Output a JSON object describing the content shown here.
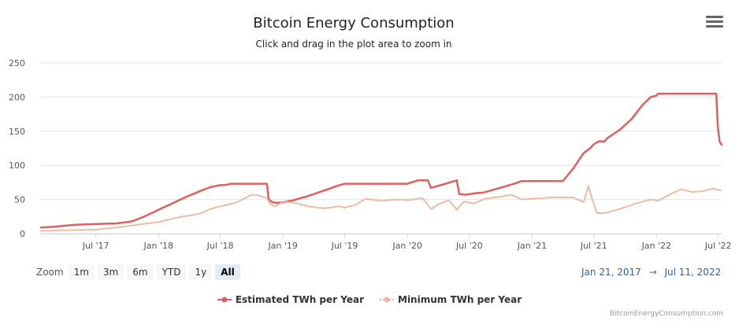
{
  "chart_data": {
    "type": "line",
    "title": "Bitcoin Energy Consumption",
    "subtitle": "Click and drag in the plot area to zoom in",
    "ylim": [
      0,
      250
    ],
    "yticks": [
      0,
      50,
      100,
      150,
      200,
      250
    ],
    "xlim": [
      "2017-01-21",
      "2022-07-11"
    ],
    "xticks": [
      {
        "date": "2017-07-01",
        "label": "Jul '17"
      },
      {
        "date": "2018-01-01",
        "label": "Jan '18"
      },
      {
        "date": "2018-07-01",
        "label": "Jul '18"
      },
      {
        "date": "2019-01-01",
        "label": "Jan '19"
      },
      {
        "date": "2019-07-01",
        "label": "Jul '19"
      },
      {
        "date": "2020-01-01",
        "label": "Jan '20"
      },
      {
        "date": "2020-07-01",
        "label": "Jul '20"
      },
      {
        "date": "2021-01-01",
        "label": "Jan '21"
      },
      {
        "date": "2021-07-01",
        "label": "Jul '21"
      },
      {
        "date": "2022-01-01",
        "label": "Jan '22"
      },
      {
        "date": "2022-07-01",
        "label": "Jul '22"
      }
    ],
    "grid": true,
    "legend_position": "bottom-center",
    "series": [
      {
        "name": "Estimated TWh per Year",
        "color": "#e05f5f",
        "style": "solid",
        "points": [
          [
            "2017-01-21",
            9
          ],
          [
            "2017-03-01",
            10
          ],
          [
            "2017-05-01",
            13
          ],
          [
            "2017-07-01",
            14
          ],
          [
            "2017-09-01",
            15
          ],
          [
            "2017-10-15",
            18
          ],
          [
            "2017-11-15",
            24
          ],
          [
            "2017-12-20",
            32
          ],
          [
            "2018-01-05",
            36
          ],
          [
            "2018-02-01",
            42
          ],
          [
            "2018-03-15",
            52
          ],
          [
            "2018-05-01",
            62
          ],
          [
            "2018-06-01",
            68
          ],
          [
            "2018-07-01",
            71
          ],
          [
            "2018-07-15",
            71
          ],
          [
            "2018-08-01",
            73
          ],
          [
            "2018-11-15",
            73
          ],
          [
            "2018-11-20",
            50
          ],
          [
            "2018-12-01",
            46
          ],
          [
            "2018-12-15",
            45
          ],
          [
            "2019-01-01",
            46
          ],
          [
            "2019-02-01",
            49
          ],
          [
            "2019-03-15",
            55
          ],
          [
            "2019-05-01",
            63
          ],
          [
            "2019-06-15",
            71
          ],
          [
            "2019-07-01",
            73
          ],
          [
            "2019-12-01",
            73
          ],
          [
            "2020-01-01",
            73
          ],
          [
            "2020-02-01",
            78
          ],
          [
            "2020-03-01",
            78
          ],
          [
            "2020-03-10",
            67
          ],
          [
            "2020-04-15",
            72
          ],
          [
            "2020-05-25",
            78
          ],
          [
            "2020-06-01",
            58
          ],
          [
            "2020-06-20",
            57
          ],
          [
            "2020-07-15",
            59
          ],
          [
            "2020-08-10",
            60
          ],
          [
            "2020-09-15",
            65
          ],
          [
            "2020-10-20",
            70
          ],
          [
            "2020-11-15",
            74
          ],
          [
            "2020-12-01",
            77
          ],
          [
            "2021-04-01",
            77
          ],
          [
            "2021-05-01",
            95
          ],
          [
            "2021-06-01",
            118
          ],
          [
            "2021-06-20",
            125
          ],
          [
            "2021-07-01",
            131
          ],
          [
            "2021-07-15",
            135
          ],
          [
            "2021-08-01",
            135
          ],
          [
            "2021-08-10",
            140
          ],
          [
            "2021-09-15",
            152
          ],
          [
            "2021-10-20",
            168
          ],
          [
            "2021-11-20",
            188
          ],
          [
            "2021-12-15",
            200
          ],
          [
            "2021-12-31",
            202
          ],
          [
            "2022-01-05",
            205
          ],
          [
            "2022-06-25",
            205
          ],
          [
            "2022-06-30",
            155
          ],
          [
            "2022-07-05",
            135
          ],
          [
            "2022-07-11",
            130
          ]
        ]
      },
      {
        "name": "Minimum TWh per Year",
        "color": "#f0b49a",
        "style": "dotted",
        "points": [
          [
            "2017-01-21",
            4
          ],
          [
            "2017-04-01",
            5
          ],
          [
            "2017-07-01",
            6
          ],
          [
            "2017-09-01",
            9
          ],
          [
            "2017-11-01",
            13
          ],
          [
            "2018-01-01",
            17
          ],
          [
            "2018-03-01",
            24
          ],
          [
            "2018-05-01",
            29
          ],
          [
            "2018-06-01",
            36
          ],
          [
            "2018-07-01",
            40
          ],
          [
            "2018-08-15",
            45
          ],
          [
            "2018-10-01",
            57
          ],
          [
            "2018-10-20",
            56
          ],
          [
            "2018-11-15",
            52
          ],
          [
            "2018-11-25",
            43
          ],
          [
            "2018-12-10",
            40
          ],
          [
            "2019-01-01",
            47
          ],
          [
            "2019-02-15",
            44
          ],
          [
            "2019-03-15",
            40
          ],
          [
            "2019-05-01",
            37
          ],
          [
            "2019-06-15",
            40
          ],
          [
            "2019-07-01",
            38
          ],
          [
            "2019-08-01",
            42
          ],
          [
            "2019-09-01",
            51
          ],
          [
            "2019-10-15",
            48
          ],
          [
            "2019-12-01",
            50
          ],
          [
            "2020-01-01",
            49
          ],
          [
            "2020-02-15",
            52
          ],
          [
            "2020-03-10",
            36
          ],
          [
            "2020-04-01",
            43
          ],
          [
            "2020-05-01",
            49
          ],
          [
            "2020-05-25",
            35
          ],
          [
            "2020-06-15",
            47
          ],
          [
            "2020-07-15",
            44
          ],
          [
            "2020-08-15",
            51
          ],
          [
            "2020-10-01",
            54
          ],
          [
            "2020-11-01",
            57
          ],
          [
            "2020-12-01",
            50
          ],
          [
            "2021-03-01",
            53
          ],
          [
            "2021-05-01",
            53
          ],
          [
            "2021-06-01",
            46
          ],
          [
            "2021-06-15",
            70
          ],
          [
            "2021-06-25",
            52
          ],
          [
            "2021-07-10",
            30
          ],
          [
            "2021-08-01",
            30
          ],
          [
            "2021-09-15",
            36
          ],
          [
            "2021-11-01",
            44
          ],
          [
            "2021-12-15",
            50
          ],
          [
            "2022-01-05",
            48
          ],
          [
            "2022-02-15",
            59
          ],
          [
            "2022-03-15",
            65
          ],
          [
            "2022-04-15",
            61
          ],
          [
            "2022-05-15",
            62
          ],
          [
            "2022-06-15",
            66
          ],
          [
            "2022-07-11",
            63
          ]
        ]
      }
    ]
  },
  "menu": {
    "icon": "hamburger-menu-icon"
  },
  "range_selector": {
    "label": "Zoom",
    "buttons": [
      "1m",
      "3m",
      "6m",
      "YTD",
      "1y",
      "All"
    ],
    "active": "All"
  },
  "date_range": {
    "from": "Jan 21, 2017",
    "arrow": "→",
    "to": "Jul 11, 2022"
  },
  "credit": "BitcoinEnergyConsumption.com"
}
